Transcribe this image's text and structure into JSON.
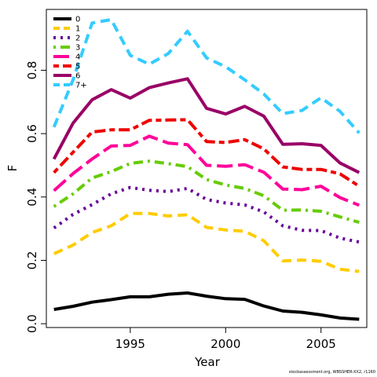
{
  "chart_data": {
    "type": "line",
    "xlabel": "Year",
    "ylabel": "F",
    "xlim": [
      1990.6,
      2007.4
    ],
    "ylim": [
      -0.012,
      0.992
    ],
    "x_ticks": [
      1995,
      2000,
      2005
    ],
    "x_tick_labels": [
      "1995",
      "2000",
      "2005"
    ],
    "y_ticks": [
      0.0,
      0.2,
      0.4,
      0.6,
      0.8
    ],
    "y_tick_labels": [
      "0.0",
      "0.2",
      "0.4",
      "0.6",
      "0.8"
    ],
    "legend_position": "top-left",
    "x": [
      1991,
      1992,
      1993,
      1994,
      1995,
      1996,
      1997,
      1998,
      1999,
      2000,
      2001,
      2002,
      2003,
      2004,
      2005,
      2006,
      2007
    ],
    "series": [
      {
        "name": "0",
        "color": "#000000",
        "dash": "solid",
        "values": [
          0.045,
          0.055,
          0.068,
          0.076,
          0.085,
          0.085,
          0.093,
          0.097,
          0.087,
          0.079,
          0.077,
          0.056,
          0.04,
          0.036,
          0.028,
          0.018,
          0.014
        ]
      },
      {
        "name": "1",
        "color": "#FFCC00",
        "dash": "dashed",
        "values": [
          0.221,
          0.248,
          0.288,
          0.309,
          0.348,
          0.348,
          0.34,
          0.344,
          0.304,
          0.296,
          0.292,
          0.262,
          0.198,
          0.201,
          0.197,
          0.172,
          0.165
        ]
      },
      {
        "name": "2",
        "color": "#660099",
        "dash": "dotted",
        "values": [
          0.302,
          0.345,
          0.376,
          0.41,
          0.43,
          0.421,
          0.417,
          0.427,
          0.392,
          0.381,
          0.375,
          0.353,
          0.309,
          0.295,
          0.294,
          0.27,
          0.258
        ]
      },
      {
        "name": "3",
        "color": "#66CC00",
        "dash": "dotdash",
        "values": [
          0.37,
          0.41,
          0.46,
          0.48,
          0.506,
          0.513,
          0.505,
          0.496,
          0.455,
          0.438,
          0.427,
          0.404,
          0.358,
          0.359,
          0.355,
          0.337,
          0.32
        ]
      },
      {
        "name": "4",
        "color": "#FF0099",
        "dash": "longdash",
        "values": [
          0.42,
          0.474,
          0.52,
          0.561,
          0.563,
          0.592,
          0.57,
          0.565,
          0.5,
          0.497,
          0.502,
          0.478,
          0.425,
          0.423,
          0.434,
          0.398,
          0.374
        ]
      },
      {
        "name": "5",
        "color": "#EE0000",
        "dash": "twodash",
        "values": [
          0.477,
          0.541,
          0.605,
          0.612,
          0.612,
          0.642,
          0.643,
          0.644,
          0.575,
          0.572,
          0.581,
          0.552,
          0.495,
          0.487,
          0.487,
          0.473,
          0.434
        ]
      },
      {
        "name": "6",
        "color": "#990066",
        "dash": "solid",
        "values": [
          0.52,
          0.633,
          0.707,
          0.739,
          0.712,
          0.745,
          0.76,
          0.773,
          0.68,
          0.662,
          0.686,
          0.655,
          0.566,
          0.568,
          0.563,
          0.507,
          0.477
        ]
      },
      {
        "name": "7+",
        "color": "#33CCFF",
        "dash": "dashed",
        "values": [
          0.621,
          0.77,
          0.949,
          0.96,
          0.847,
          0.819,
          0.853,
          0.923,
          0.839,
          0.811,
          0.77,
          0.725,
          0.663,
          0.673,
          0.713,
          0.67,
          0.602
        ]
      }
    ]
  },
  "credit": "stockassessment.org, WBSSHER-XX2, r1160"
}
